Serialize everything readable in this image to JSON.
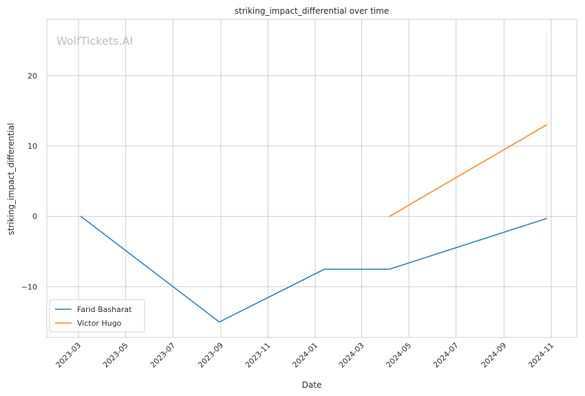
{
  "chart_data": {
    "type": "line",
    "title": "striking_impact_differential over time",
    "xlabel": "Date",
    "ylabel": "striking_impact_differential",
    "watermark": "WolfTickets.AI",
    "xlim": [
      "2023-01-19",
      "2024-12-04"
    ],
    "ylim": [
      -17.2,
      28.0
    ],
    "x_ticks": [
      "2023-03",
      "2023-05",
      "2023-07",
      "2023-09",
      "2023-11",
      "2024-01",
      "2024-03",
      "2024-05",
      "2024-07",
      "2024-09",
      "2024-11"
    ],
    "y_ticks": [
      -10,
      0,
      10,
      20
    ],
    "y_tick_labels": [
      "−10",
      "0",
      "10",
      "20"
    ],
    "grid": true,
    "legend_position": "lower-left",
    "series": [
      {
        "name": "Farid Basharat",
        "color": "#1f77b4",
        "points": [
          {
            "x": "2023-03-04",
            "y": 0
          },
          {
            "x": "2023-08-30",
            "y": -15
          },
          {
            "x": "2024-01-13",
            "y": -7.5
          },
          {
            "x": "2024-04-06",
            "y": -7.5
          },
          {
            "x": "2024-10-26",
            "y": -0.3
          }
        ]
      },
      {
        "name": "Victor Hugo",
        "color": "#ff7f0e",
        "points": [
          {
            "x": "2024-04-06",
            "y": 0
          },
          {
            "x": "2024-10-26",
            "y": 13
          }
        ],
        "band": {
          "x": "2024-10-26",
          "low": 0,
          "high": 26
        }
      }
    ]
  }
}
